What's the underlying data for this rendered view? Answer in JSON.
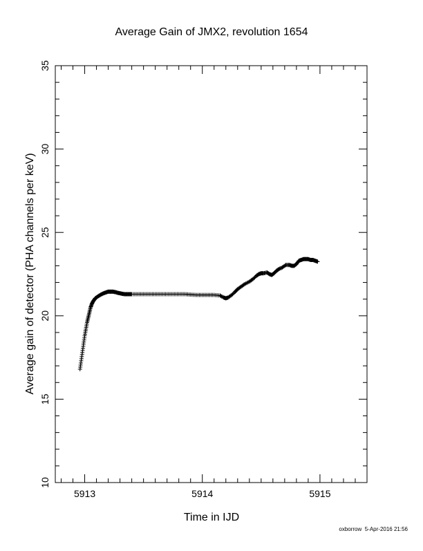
{
  "chart_data": {
    "type": "scatter",
    "title": "Average Gain of JMX2, revolution 1654",
    "xlabel": "Time in IJD",
    "ylabel": "Average gain of detector (PHA channels per keV)",
    "xlim": [
      5912.75,
      5915.4
    ],
    "ylim": [
      10,
      35
    ],
    "xticks": [
      5913,
      5914,
      5915
    ],
    "xtick_labels": [
      "5913",
      "5914",
      "5915"
    ],
    "yticks": [
      10,
      15,
      20,
      25,
      30,
      35
    ],
    "ytick_labels": [
      "10",
      "15",
      "20",
      "25",
      "30",
      "35"
    ],
    "grid": false,
    "marker": "plus",
    "series": [
      {
        "x": [
          5912.96,
          5912.97,
          5912.98,
          5912.99,
          5913.0,
          5913.01,
          5913.02,
          5913.03,
          5913.04,
          5913.05,
          5913.06,
          5913.07,
          5913.08,
          5913.09,
          5913.1,
          5913.12,
          5913.14,
          5913.16,
          5913.18,
          5913.2,
          5913.22,
          5913.24,
          5913.26,
          5913.28,
          5913.3,
          5913.32,
          5913.34,
          5913.36,
          5913.38,
          5913.4,
          5913.45,
          5913.5,
          5913.55,
          5913.6,
          5913.65,
          5913.7,
          5913.75,
          5913.8,
          5913.85,
          5913.9,
          5913.95,
          5914.0,
          5914.05,
          5914.1,
          5914.15,
          5914.18,
          5914.2,
          5914.22,
          5914.25,
          5914.28,
          5914.3,
          5914.33,
          5914.36,
          5914.4,
          5914.43,
          5914.46,
          5914.48,
          5914.5,
          5914.52,
          5914.55,
          5914.57,
          5914.59,
          5914.61,
          5914.63,
          5914.65,
          5914.68,
          5914.71,
          5914.74,
          5914.76,
          5914.78,
          5914.8,
          5914.82,
          5914.84,
          5914.86,
          5914.88,
          5914.9,
          5914.92,
          5914.94,
          5914.96,
          5914.98
        ],
        "y": [
          16.8,
          17.3,
          17.8,
          18.3,
          18.8,
          19.2,
          19.6,
          19.9,
          20.2,
          20.5,
          20.7,
          20.85,
          20.95,
          21.05,
          21.1,
          21.2,
          21.28,
          21.35,
          21.4,
          21.45,
          21.45,
          21.45,
          21.42,
          21.38,
          21.35,
          21.32,
          21.3,
          21.3,
          21.3,
          21.3,
          21.3,
          21.3,
          21.3,
          21.3,
          21.3,
          21.3,
          21.3,
          21.3,
          21.3,
          21.27,
          21.25,
          21.25,
          21.25,
          21.25,
          21.22,
          21.1,
          21.05,
          21.1,
          21.25,
          21.45,
          21.6,
          21.75,
          21.9,
          22.05,
          22.2,
          22.4,
          22.5,
          22.55,
          22.55,
          22.6,
          22.5,
          22.45,
          22.55,
          22.7,
          22.8,
          22.9,
          23.05,
          23.05,
          23.0,
          23.0,
          23.1,
          23.3,
          23.35,
          23.4,
          23.4,
          23.4,
          23.35,
          23.35,
          23.3,
          23.25
        ]
      }
    ]
  },
  "footer_text": "oxborrow  5-Apr-2016 21:56",
  "colors": {
    "foreground": "#000000",
    "background": "#ffffff"
  }
}
